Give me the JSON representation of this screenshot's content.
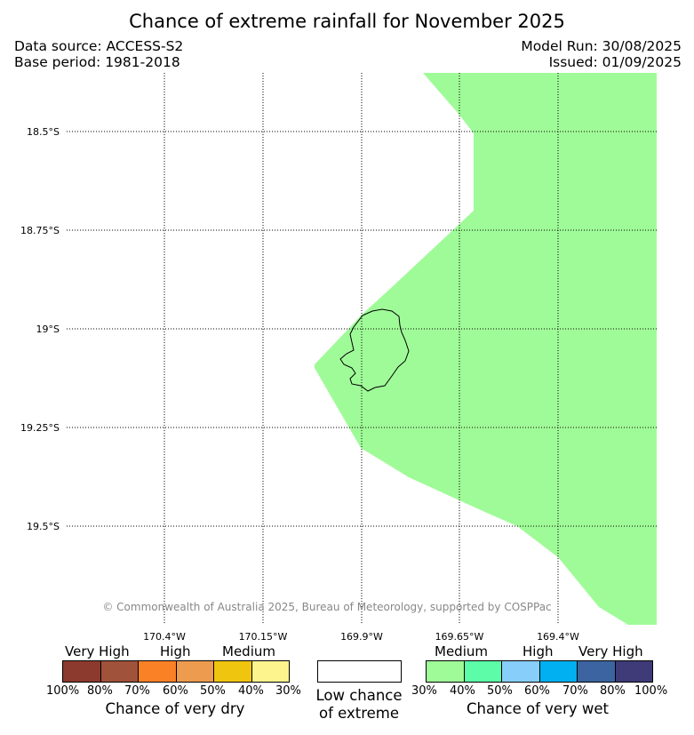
{
  "header": {
    "title": "Chance of extreme rainfall for November 2025",
    "data_source": "Data source: ACCESS-S2",
    "base_period": "Base period: 1981-2018",
    "model_run": "Model Run: 30/08/2025",
    "issued": "Issued: 01/09/2025"
  },
  "map": {
    "copyright": "© Commonwealth of Australia 2025, Bureau of Meteorology, supported by COSPPac",
    "lat_labels": [
      "18.5°S",
      "18.75°S",
      "19°S",
      "19.25°S",
      "19.5°S"
    ],
    "lon_labels": [
      "170.4°W",
      "170.15°W",
      "169.9°W",
      "169.65°W",
      "169.4°W"
    ],
    "region_fill_color": "#9ffb98",
    "coastline_color": "#000000"
  },
  "legend": {
    "dry": {
      "levels": [
        "Very High",
        "High",
        "Medium"
      ],
      "colors": [
        "#8c3a2e",
        "#a0523a",
        "#fb8127",
        "#ec9b4f",
        "#f0c50f",
        "#fdf48e"
      ],
      "ticks": [
        "100%",
        "80%",
        "70%",
        "60%",
        "50%",
        "40%",
        "30%"
      ],
      "caption": "Chance of very dry"
    },
    "low": {
      "line1": "Low chance",
      "line2": "of extreme"
    },
    "wet": {
      "levels": [
        "Medium",
        "High",
        "Very High"
      ],
      "colors": [
        "#9ffb98",
        "#5cfca8",
        "#87cefa",
        "#00b0f0",
        "#3b64a0",
        "#3e3b78"
      ],
      "ticks": [
        "30%",
        "40%",
        "50%",
        "60%",
        "70%",
        "80%",
        "100%"
      ],
      "caption": "Chance of very wet"
    }
  }
}
